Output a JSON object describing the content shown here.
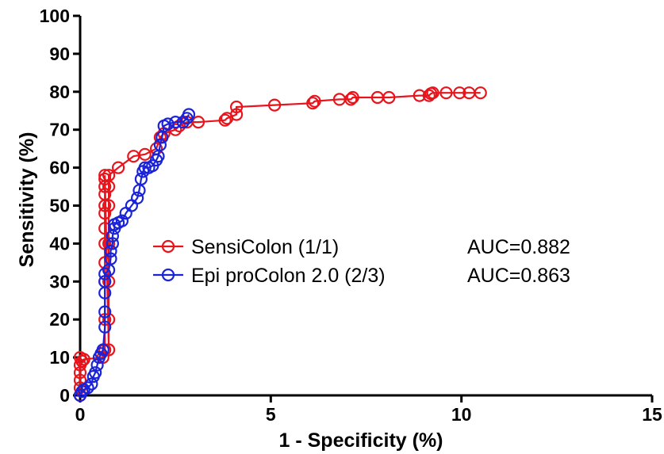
{
  "chart_data": {
    "type": "line",
    "xlabel": "1 - Specificity (%)",
    "ylabel": "Sensitivity (%)",
    "xlim": [
      0,
      15
    ],
    "ylim": [
      0,
      100
    ],
    "x_ticks": [
      0,
      5,
      10,
      15
    ],
    "y_ticks": [
      0,
      10,
      20,
      30,
      40,
      50,
      60,
      70,
      80,
      90,
      100
    ],
    "grid": false,
    "legend_placement": "center-left",
    "series": [
      {
        "name": "SensiColon (1/1)",
        "auc_label": "AUC=0.882",
        "color": "#e8141c",
        "points": [
          [
            0,
            0
          ],
          [
            0,
            2
          ],
          [
            0,
            4
          ],
          [
            0,
            6
          ],
          [
            0,
            8
          ],
          [
            0,
            10
          ],
          [
            0.05,
            9
          ],
          [
            0.1,
            9.5
          ],
          [
            0.6,
            10
          ],
          [
            0.65,
            12
          ],
          [
            0.65,
            20
          ],
          [
            0.65,
            30
          ],
          [
            0.65,
            35
          ],
          [
            0.65,
            40
          ],
          [
            0.65,
            44
          ],
          [
            0.65,
            48
          ],
          [
            0.65,
            50
          ],
          [
            0.65,
            53
          ],
          [
            0.65,
            55
          ],
          [
            0.65,
            57
          ],
          [
            0.65,
            58
          ],
          [
            0.75,
            12
          ],
          [
            0.75,
            20
          ],
          [
            0.75,
            30
          ],
          [
            0.75,
            40
          ],
          [
            0.75,
            50
          ],
          [
            0.75,
            55
          ],
          [
            0.75,
            58
          ],
          [
            1.0,
            60
          ],
          [
            1.4,
            63
          ],
          [
            1.7,
            63.5
          ],
          [
            2.0,
            65
          ],
          [
            2.1,
            68
          ],
          [
            2.2,
            69
          ],
          [
            2.5,
            70
          ],
          [
            2.6,
            71
          ],
          [
            2.8,
            72
          ],
          [
            3.1,
            72
          ],
          [
            3.8,
            72.5
          ],
          [
            3.85,
            73
          ],
          [
            4.1,
            74
          ],
          [
            4.1,
            76
          ],
          [
            5.1,
            76.5
          ],
          [
            6.1,
            77
          ],
          [
            6.15,
            77.5
          ],
          [
            6.8,
            78
          ],
          [
            7.1,
            78
          ],
          [
            7.15,
            78.5
          ],
          [
            7.8,
            78.5
          ],
          [
            8.1,
            78.5
          ],
          [
            8.9,
            79
          ],
          [
            9.15,
            79
          ],
          [
            9.2,
            79.5
          ],
          [
            9.25,
            79.7
          ],
          [
            9.6,
            79.7
          ],
          [
            9.95,
            79.7
          ],
          [
            10.2,
            79.7
          ],
          [
            10.5,
            79.7
          ]
        ]
      },
      {
        "name": "Epi proColon 2.0 (2/3)",
        "auc_label": "AUC=0.863",
        "color": "#1a23d8",
        "points": [
          [
            0,
            0
          ],
          [
            0.05,
            1
          ],
          [
            0.1,
            1.5
          ],
          [
            0.2,
            2
          ],
          [
            0.3,
            3
          ],
          [
            0.35,
            5
          ],
          [
            0.4,
            6
          ],
          [
            0.45,
            8
          ],
          [
            0.5,
            10
          ],
          [
            0.55,
            11
          ],
          [
            0.6,
            12
          ],
          [
            0.65,
            18
          ],
          [
            0.65,
            22
          ],
          [
            0.65,
            27
          ],
          [
            0.65,
            30
          ],
          [
            0.65,
            32
          ],
          [
            0.75,
            33
          ],
          [
            0.8,
            36
          ],
          [
            0.8,
            38
          ],
          [
            0.85,
            40
          ],
          [
            0.85,
            42
          ],
          [
            0.9,
            44
          ],
          [
            0.9,
            45
          ],
          [
            1.0,
            45.5
          ],
          [
            1.1,
            46
          ],
          [
            1.2,
            48
          ],
          [
            1.35,
            50
          ],
          [
            1.5,
            52
          ],
          [
            1.55,
            54
          ],
          [
            1.6,
            57
          ],
          [
            1.65,
            59
          ],
          [
            1.7,
            60
          ],
          [
            1.8,
            60
          ],
          [
            1.9,
            60.5
          ],
          [
            2.0,
            62
          ],
          [
            2.05,
            63
          ],
          [
            2.1,
            66
          ],
          [
            2.15,
            68
          ],
          [
            2.2,
            71
          ],
          [
            2.3,
            71.5
          ],
          [
            2.5,
            72
          ],
          [
            2.7,
            72
          ],
          [
            2.8,
            73
          ],
          [
            2.85,
            74
          ]
        ]
      }
    ]
  }
}
